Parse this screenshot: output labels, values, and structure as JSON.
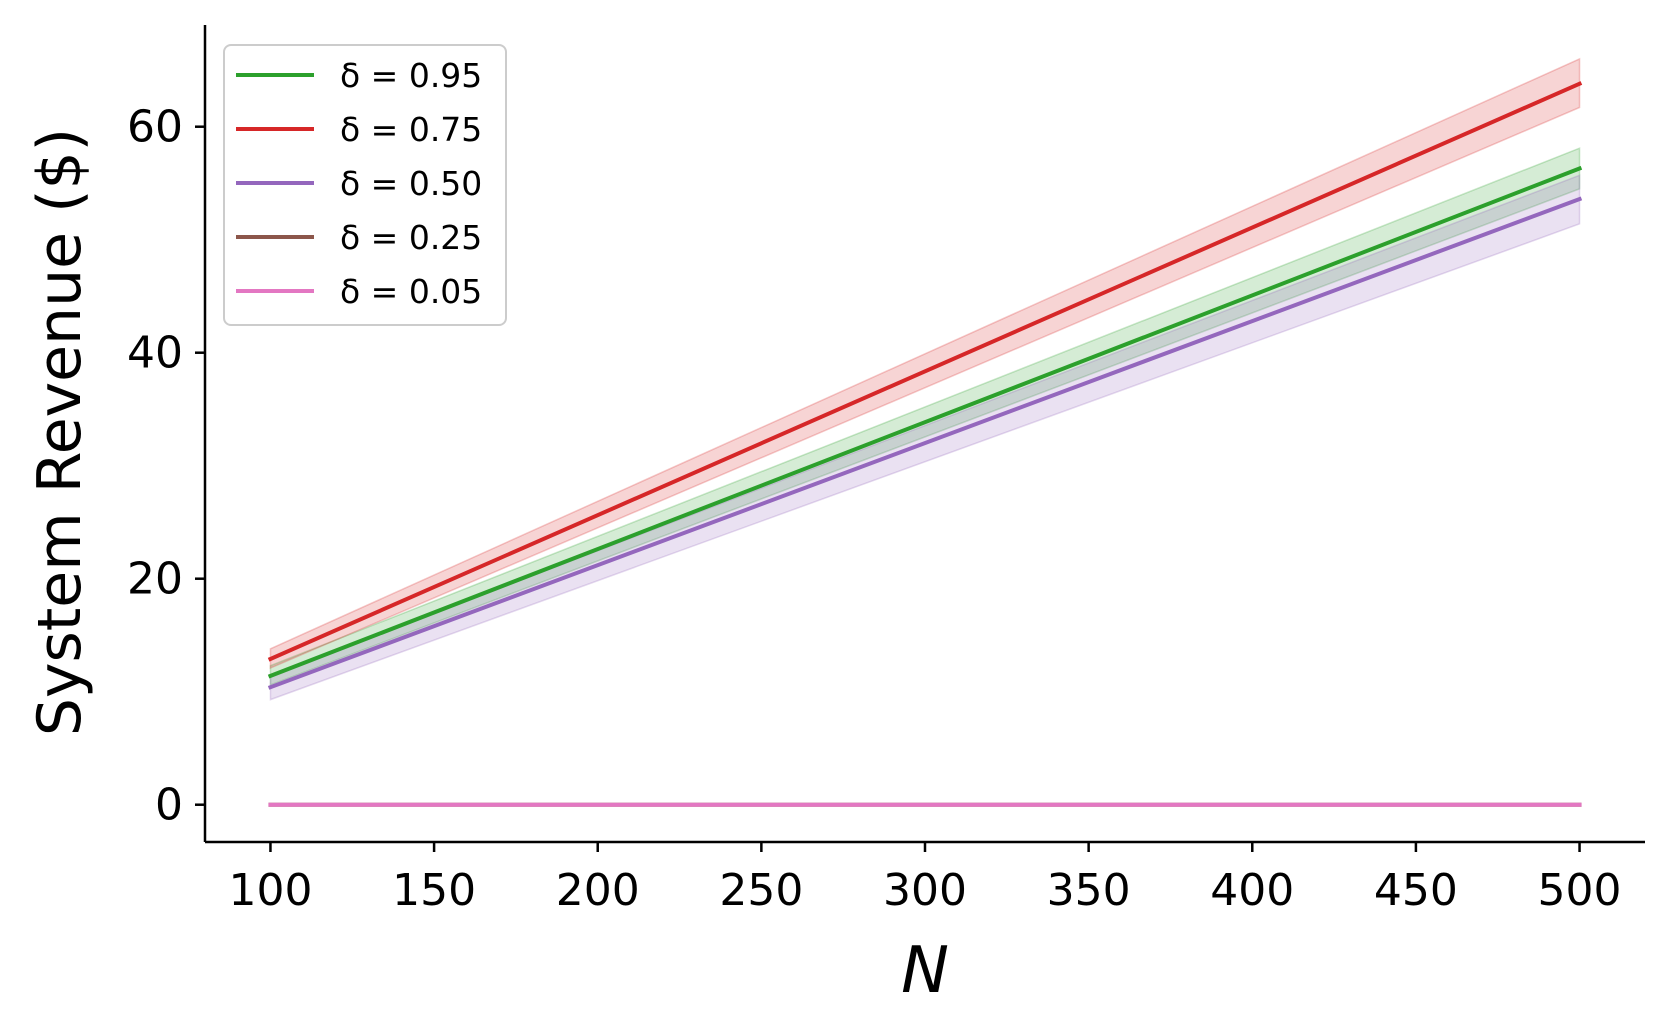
{
  "chart_data": {
    "type": "line",
    "title": "",
    "xlabel": "N",
    "ylabel": "System Revenue ($)",
    "xlim": [
      80,
      520
    ],
    "ylim": [
      -3.3,
      69
    ],
    "xticks": [
      100,
      150,
      200,
      250,
      300,
      350,
      400,
      450,
      500
    ],
    "yticks": [
      0,
      20,
      40,
      60
    ],
    "grid": false,
    "legend_position": "top-left",
    "x": [
      100,
      500
    ],
    "series": [
      {
        "name": "δ = 0.95",
        "color": "#2ca02c",
        "values": [
          11.4,
          56.3
        ],
        "lower": [
          10.6,
          54.5
        ],
        "upper": [
          12.3,
          58.1
        ]
      },
      {
        "name": "δ = 0.75",
        "color": "#d62728",
        "values": [
          12.9,
          63.8
        ],
        "lower": [
          12.1,
          61.7
        ],
        "upper": [
          13.8,
          66.0
        ]
      },
      {
        "name": "δ = 0.50",
        "color": "#9467bd",
        "values": [
          10.4,
          53.6
        ],
        "lower": [
          9.3,
          51.4
        ],
        "upper": [
          11.4,
          55.7
        ]
      },
      {
        "name": "δ = 0.25",
        "color": "#8c564b",
        "values": [
          0.0,
          0.0
        ],
        "lower": [
          0.0,
          0.0
        ],
        "upper": [
          0.0,
          0.0
        ]
      },
      {
        "name": "δ = 0.05",
        "color": "#e377c2",
        "values": [
          0.0,
          0.0
        ],
        "lower": [
          0.0,
          0.0
        ],
        "upper": [
          0.0,
          0.0
        ]
      }
    ]
  }
}
